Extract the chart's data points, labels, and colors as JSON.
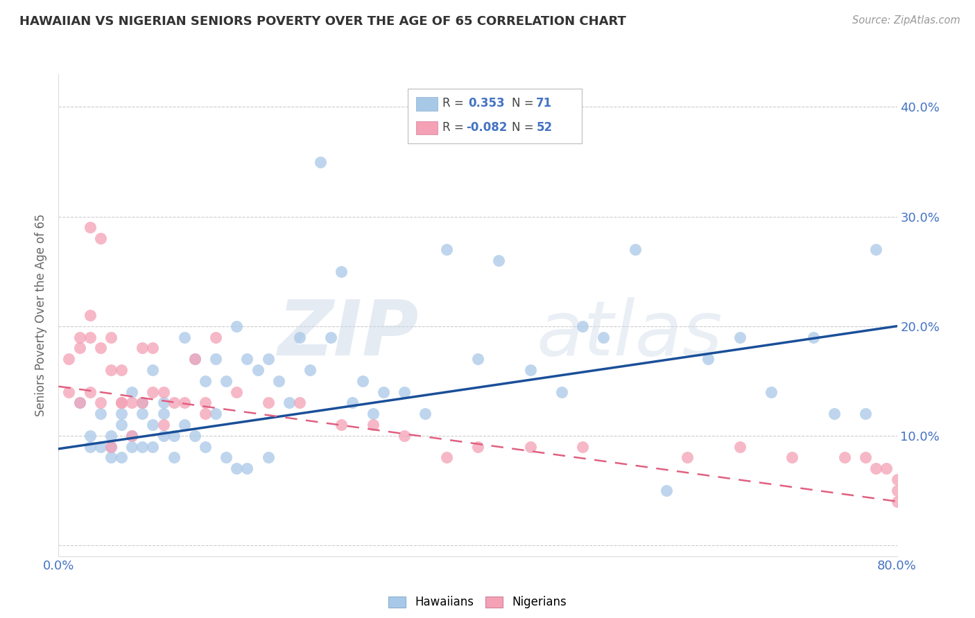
{
  "title": "HAWAIIAN VS NIGERIAN SENIORS POVERTY OVER THE AGE OF 65 CORRELATION CHART",
  "source": "Source: ZipAtlas.com",
  "ylabel": "Seniors Poverty Over the Age of 65",
  "hawaiian_R": 0.353,
  "hawaiian_N": 71,
  "nigerian_R": -0.082,
  "nigerian_N": 52,
  "xlim": [
    0.0,
    0.8
  ],
  "ylim": [
    0.0,
    0.42
  ],
  "hawaiian_color": "#a8c8e8",
  "nigerian_color": "#f4a0b5",
  "trend_hawaiian_color": "#1a4f99",
  "trend_nigerian_color": "#e06080",
  "hawaiian_x": [
    0.02,
    0.03,
    0.03,
    0.04,
    0.04,
    0.05,
    0.05,
    0.05,
    0.06,
    0.06,
    0.06,
    0.07,
    0.07,
    0.07,
    0.08,
    0.08,
    0.08,
    0.09,
    0.09,
    0.09,
    0.1,
    0.1,
    0.1,
    0.11,
    0.11,
    0.12,
    0.12,
    0.13,
    0.13,
    0.14,
    0.14,
    0.15,
    0.15,
    0.16,
    0.16,
    0.17,
    0.17,
    0.18,
    0.18,
    0.19,
    0.2,
    0.2,
    0.21,
    0.22,
    0.23,
    0.24,
    0.25,
    0.26,
    0.27,
    0.28,
    0.29,
    0.3,
    0.31,
    0.33,
    0.35,
    0.37,
    0.4,
    0.42,
    0.45,
    0.48,
    0.5,
    0.52,
    0.55,
    0.58,
    0.62,
    0.65,
    0.68,
    0.72,
    0.74,
    0.77,
    0.78
  ],
  "hawaiian_y": [
    0.13,
    0.1,
    0.09,
    0.09,
    0.12,
    0.1,
    0.08,
    0.09,
    0.08,
    0.11,
    0.12,
    0.09,
    0.1,
    0.14,
    0.09,
    0.12,
    0.13,
    0.09,
    0.11,
    0.16,
    0.1,
    0.12,
    0.13,
    0.08,
    0.1,
    0.11,
    0.19,
    0.1,
    0.17,
    0.09,
    0.15,
    0.12,
    0.17,
    0.15,
    0.08,
    0.07,
    0.2,
    0.07,
    0.17,
    0.16,
    0.08,
    0.17,
    0.15,
    0.13,
    0.19,
    0.16,
    0.35,
    0.19,
    0.25,
    0.13,
    0.15,
    0.12,
    0.14,
    0.14,
    0.12,
    0.27,
    0.17,
    0.26,
    0.16,
    0.14,
    0.2,
    0.19,
    0.27,
    0.05,
    0.17,
    0.19,
    0.14,
    0.19,
    0.12,
    0.12,
    0.27
  ],
  "nigerian_x": [
    0.01,
    0.01,
    0.02,
    0.02,
    0.02,
    0.03,
    0.03,
    0.03,
    0.03,
    0.04,
    0.04,
    0.04,
    0.05,
    0.05,
    0.05,
    0.06,
    0.06,
    0.06,
    0.07,
    0.07,
    0.08,
    0.08,
    0.09,
    0.09,
    0.1,
    0.1,
    0.11,
    0.12,
    0.13,
    0.14,
    0.14,
    0.15,
    0.17,
    0.2,
    0.23,
    0.27,
    0.3,
    0.33,
    0.37,
    0.4,
    0.45,
    0.5,
    0.6,
    0.65,
    0.7,
    0.75,
    0.77,
    0.78,
    0.79,
    0.8,
    0.8,
    0.8
  ],
  "nigerian_y": [
    0.14,
    0.17,
    0.13,
    0.18,
    0.19,
    0.14,
    0.19,
    0.21,
    0.29,
    0.13,
    0.18,
    0.28,
    0.09,
    0.16,
    0.19,
    0.13,
    0.13,
    0.16,
    0.1,
    0.13,
    0.13,
    0.18,
    0.14,
    0.18,
    0.11,
    0.14,
    0.13,
    0.13,
    0.17,
    0.12,
    0.13,
    0.19,
    0.14,
    0.13,
    0.13,
    0.11,
    0.11,
    0.1,
    0.08,
    0.09,
    0.09,
    0.09,
    0.08,
    0.09,
    0.08,
    0.08,
    0.08,
    0.07,
    0.07,
    0.06,
    0.05,
    0.04
  ],
  "watermark_zip": "ZIP",
  "watermark_atlas": "atlas",
  "background_color": "#ffffff",
  "grid_color": "#cccccc",
  "axis_label_color": "#4472c4",
  "title_color": "#333333"
}
